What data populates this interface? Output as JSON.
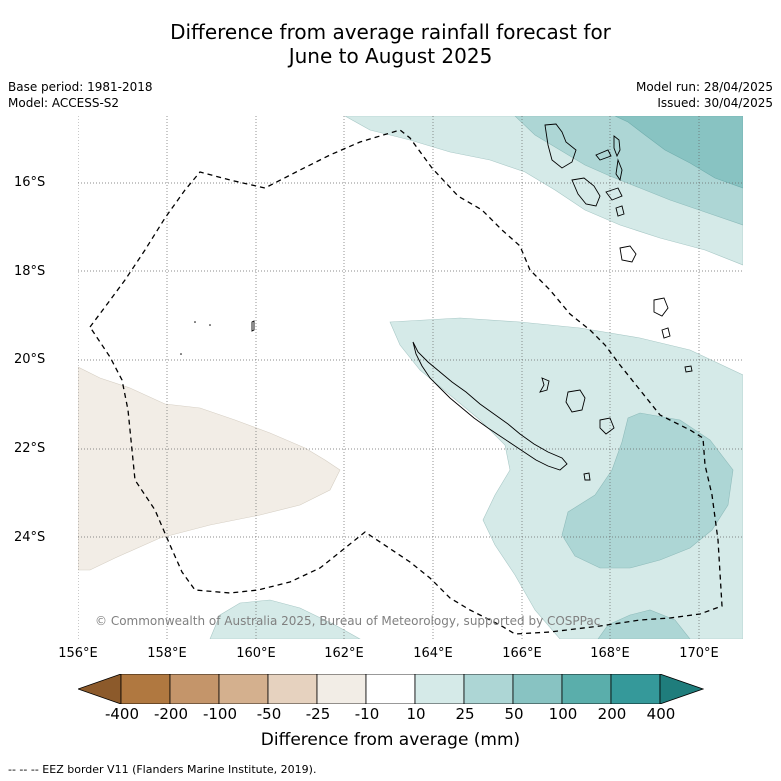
{
  "title_line1": "Difference from average rainfall forecast for",
  "title_line2": "June to August 2025",
  "meta_left": {
    "base_period": "Base period: 1981-2018",
    "model": "Model: ACCESS-S2"
  },
  "meta_right": {
    "model_run": "Model run: 28/04/2025",
    "issued": "Issued: 30/04/2025"
  },
  "lat_labels": [
    "16°S",
    "18°S",
    "20°S",
    "22°S",
    "24°S"
  ],
  "lon_labels": [
    "156°E",
    "158°E",
    "160°E",
    "162°E",
    "164°E",
    "166°E",
    "168°E",
    "170°E"
  ],
  "copyright": "© Commonwealth of Australia 2025, Bureau of Meteorology, supported by COSPPac",
  "colorbar": {
    "labels": [
      "-400",
      "-200",
      "-100",
      "-50",
      "-25",
      "-10",
      "10",
      "25",
      "50",
      "100",
      "200",
      "400"
    ],
    "colors": [
      "#8c5a2b",
      "#b07840",
      "#c4956a",
      "#d4b08e",
      "#e6d2bf",
      "#f2ede6",
      "#ffffff",
      "#d5eae8",
      "#add6d5",
      "#88c3c2",
      "#5aaeab",
      "#35999a",
      "#1f7d7c"
    ],
    "title": "Difference from average (mm)"
  },
  "footnote": "--  --  -- EEZ border V11 (Flanders Marine Institute, 2019)."
}
